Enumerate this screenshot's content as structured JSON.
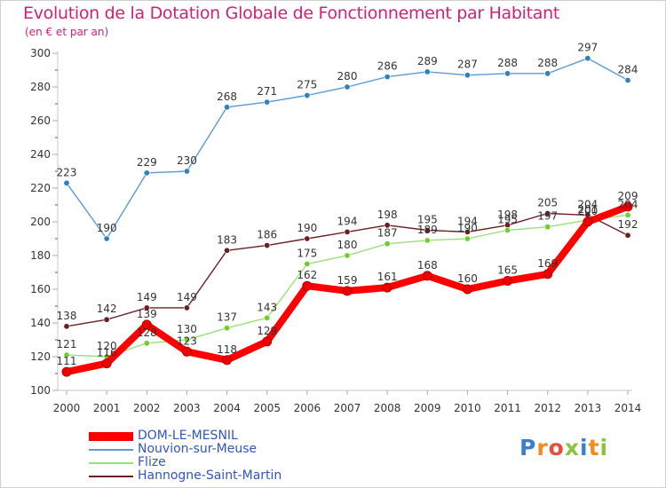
{
  "title": "Evolution de la Dotation Globale de Fonctionnement par Habitant",
  "subtitle": "(en € et par an)",
  "logo": {
    "text": "Proxiti",
    "letters": [
      "P",
      "r",
      "o",
      "x",
      "i",
      "t",
      "i"
    ],
    "colors": [
      "#3a7fd5",
      "#f28c1e",
      "#e94c3d",
      "#8cc43f",
      "#3a7fd5",
      "#f28c1e",
      "#8cc43f"
    ]
  },
  "chart_data": {
    "type": "line",
    "title": "Evolution de la Dotation Globale de Fonctionnement par Habitant",
    "ylabel": "(en € et par an)",
    "x": [
      "2000",
      "2001",
      "2002",
      "2003",
      "2004",
      "2005",
      "2006",
      "2007",
      "2008",
      "2009",
      "2010",
      "2011",
      "2012",
      "2013",
      "2014"
    ],
    "ylim": [
      100,
      300
    ],
    "yticks": [
      "100",
      "120",
      "140",
      "160",
      "180",
      "200",
      "220",
      "240",
      "260",
      "280",
      "300"
    ],
    "grid": false,
    "legend_position": "bottom-left",
    "series": [
      {
        "name": "Nouvion-sur-Meuse",
        "color": "#5a9bd5",
        "point_color": "#2f7fc1",
        "values": [
          223,
          190,
          229,
          230,
          268,
          271,
          275,
          280,
          286,
          289,
          287,
          288,
          288,
          297,
          284
        ],
        "labels": [
          "223",
          "190",
          "229",
          "230",
          "268",
          "271",
          "275",
          "280",
          "286",
          "289",
          "287",
          "288",
          "288",
          "297",
          "284"
        ]
      },
      {
        "name": "Hannogne-Saint-Martin",
        "color": "#6b1f24",
        "point_color": "#6b1f24",
        "values": [
          138,
          142,
          149,
          149,
          183,
          186,
          190,
          194,
          198,
          195,
          194,
          198,
          205,
          204,
          192
        ],
        "labels": [
          "138",
          "142",
          "149",
          "149",
          "183",
          "186",
          "190",
          "194",
          "198",
          "195",
          "194",
          "198",
          "205",
          "204",
          "192"
        ]
      },
      {
        "name": "Flize",
        "color": "#99e07a",
        "point_color": "#6ccf2a",
        "values": [
          121,
          120,
          128,
          130,
          137,
          143,
          175,
          180,
          187,
          189,
          190,
          195,
          197,
          201,
          204
        ],
        "labels": [
          "121",
          "120",
          "128",
          "130",
          "137",
          "143",
          "175",
          "180",
          "187",
          "189",
          "190",
          "195",
          "197",
          "201",
          "204"
        ]
      },
      {
        "name": "DOM-LE-MESNIL",
        "color": "#ff0000",
        "point_color": "#ee0000",
        "values": [
          111,
          116,
          139,
          123,
          118,
          129,
          162,
          159,
          161,
          168,
          160,
          165,
          169,
          200,
          209
        ],
        "labels": [
          "111",
          "116",
          "139",
          "123",
          "118",
          "129",
          "162",
          "159",
          "161",
          "168",
          "160",
          "165",
          "169",
          "200",
          "209"
        ]
      }
    ],
    "legend": [
      "DOM-LE-MESNIL",
      "Nouvion-sur-Meuse",
      "Flize",
      "Hannogne-Saint-Martin"
    ]
  }
}
